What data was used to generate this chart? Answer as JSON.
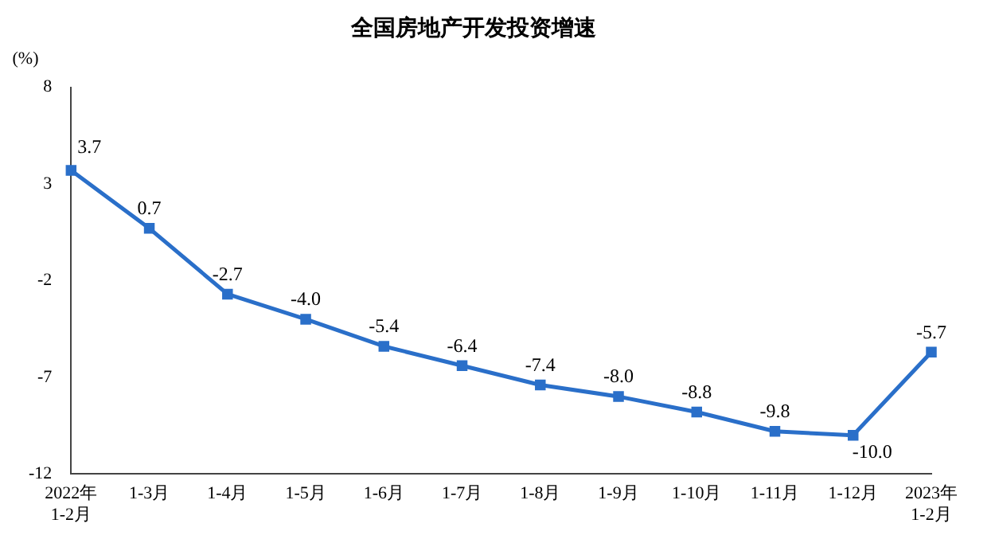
{
  "chart_data": {
    "type": "line",
    "title": "全国房地产开发投资增速",
    "ylabel": "(%)",
    "categories": [
      "2022年\n1-2月",
      "1-3月",
      "1-4月",
      "1-5月",
      "1-6月",
      "1-7月",
      "1-8月",
      "1-9月",
      "1-10月",
      "1-11月",
      "1-12月",
      "2023年\n1-2月"
    ],
    "series": [
      {
        "color": "#2a6fc9",
        "values": [
          3.7,
          0.7,
          -2.7,
          -4.0,
          -5.4,
          -6.4,
          -7.4,
          -8.0,
          -8.8,
          -9.8,
          -10.0,
          -5.7
        ],
        "value_labels": [
          "3.7",
          "0.7",
          "-2.7",
          "-4.0",
          "-5.4",
          "-6.4",
          "-7.4",
          "-8.0",
          "-8.8",
          "-9.8",
          "-10.0",
          "-5.7"
        ]
      }
    ],
    "ylim": [
      -12,
      8
    ],
    "yticks": [
      -12,
      -7,
      -2,
      3,
      8
    ],
    "grid": false,
    "legend": false,
    "marker": "square",
    "line_style": "solid"
  }
}
